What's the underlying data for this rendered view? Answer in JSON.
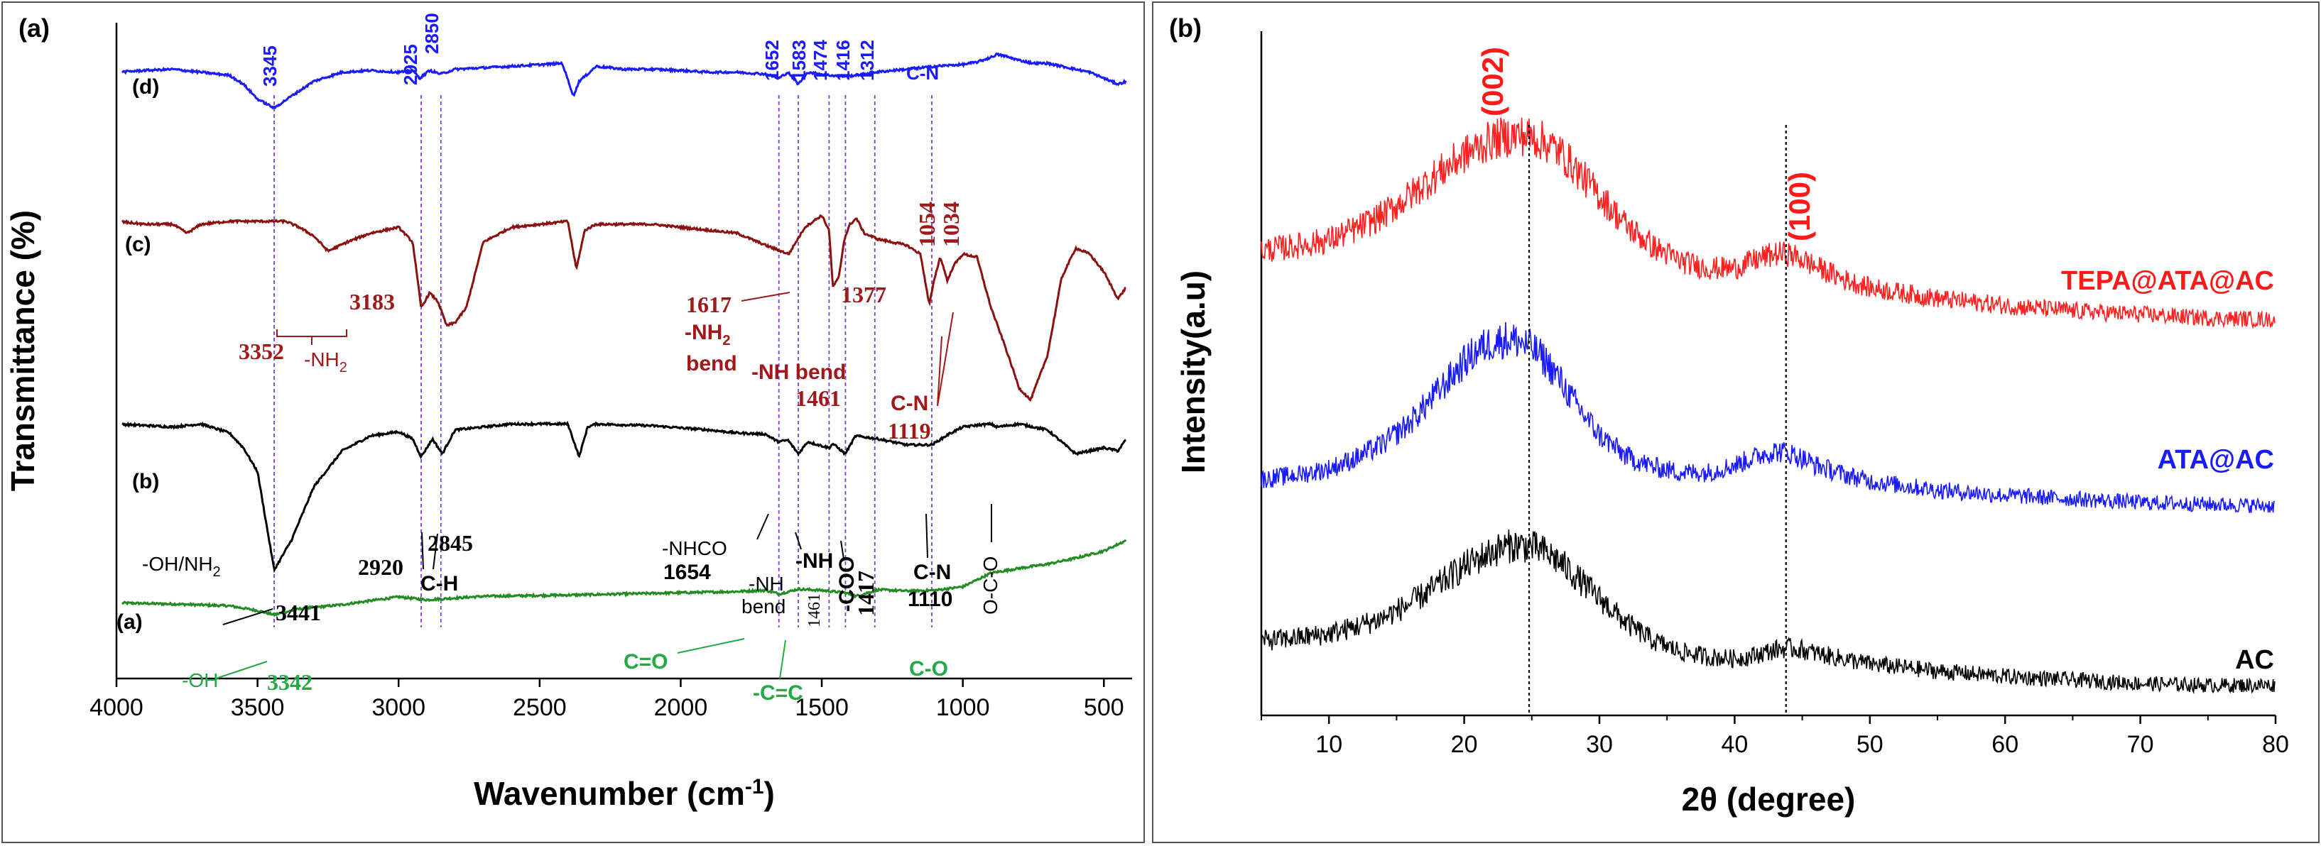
{
  "colors": {
    "blue": "#1a1aff",
    "maroon": "#8b1010",
    "black": "#000000",
    "green": "#228b22",
    "red": "#ff1a1a",
    "guide_purple": "#7b3fd6",
    "xrd_red": "#ff2020",
    "xrd_blue": "#1a1aff",
    "xrd_black": "#000000",
    "green_text": "#22aa44"
  },
  "chart_data": [
    {
      "type": "line",
      "panel_label": "(a)",
      "title": "",
      "xlabel": "Wavenumber (cm",
      "xlabel_sup": "-1",
      "xlabel_end": ")",
      "ylabel": "Transmittance (%)",
      "xlim": [
        4000,
        400
      ],
      "x_ticks": [
        "4000",
        "3500",
        "3000",
        "2500",
        "2000",
        "1500",
        "1000",
        "500"
      ],
      "x_tick_values": [
        4000,
        3500,
        3000,
        2500,
        2000,
        1500,
        1000,
        500
      ],
      "guide_lines": [
        3441,
        2920,
        2850,
        1652,
        1583,
        1474,
        1416,
        1312,
        1110
      ],
      "series": [
        {
          "name": "(a)",
          "color": "#228b22",
          "baseline": 10,
          "x": [
            4000,
            3800,
            3600,
            3500,
            3441,
            3350,
            3200,
            3000,
            2900,
            2700,
            2400,
            2200,
            2000,
            1800,
            1700,
            1650,
            1583,
            1500,
            1417,
            1380,
            1300,
            1200,
            1100,
            1000,
            900,
            800,
            700,
            600,
            500,
            420,
            400
          ],
          "values": [
            11.5,
            11.3,
            11.0,
            10.2,
            9.5,
            10.5,
            11.2,
            12.5,
            12.0,
            12.6,
            12.8,
            13.0,
            13.2,
            13.4,
            13.6,
            13.0,
            13.8,
            13.6,
            13.2,
            12.6,
            13.7,
            13.5,
            13.6,
            14.2,
            16.5,
            17.3,
            18.0,
            19.0,
            20.2,
            22.0,
            25.0
          ]
        },
        {
          "name": "(b)",
          "color": "#000000",
          "baseline": 40,
          "x": [
            4000,
            3800,
            3700,
            3600,
            3550,
            3500,
            3441,
            3380,
            3300,
            3200,
            3100,
            3000,
            2950,
            2920,
            2880,
            2845,
            2800,
            2600,
            2400,
            2360,
            2330,
            2300,
            2100,
            1900,
            1800,
            1700,
            1654,
            1620,
            1583,
            1550,
            1474,
            1461,
            1417,
            1380,
            1300,
            1200,
            1110,
            1050,
            1000,
            950,
            900,
            880,
            800,
            700,
            600,
            500,
            450,
            420,
            400
          ],
          "values": [
            41.5,
            41.0,
            41.5,
            40.0,
            37.5,
            33.5,
            17.0,
            22.0,
            31.0,
            37.0,
            39.5,
            40.2,
            39.0,
            36.0,
            39.0,
            36.5,
            40.5,
            41.5,
            41.5,
            36.0,
            41.0,
            41.5,
            41.2,
            40.5,
            40.0,
            39.8,
            38.5,
            38.8,
            36.5,
            38.5,
            37.5,
            38.2,
            36.5,
            39.5,
            39.0,
            38.0,
            38.0,
            39.8,
            41.0,
            41.3,
            41.5,
            41.0,
            41.5,
            40.5,
            36.5,
            37.5,
            37.0,
            39.0,
            44.5
          ]
        },
        {
          "name": "(c)",
          "color": "#8b1010",
          "baseline": 70,
          "x": [
            4000,
            3900,
            3800,
            3750,
            3700,
            3600,
            3500,
            3400,
            3352,
            3300,
            3250,
            3183,
            3100,
            3000,
            2950,
            2920,
            2890,
            2860,
            2830,
            2800,
            2760,
            2700,
            2600,
            2500,
            2400,
            2370,
            2340,
            2300,
            2200,
            2100,
            2000,
            1900,
            1800,
            1700,
            1617,
            1560,
            1500,
            1474,
            1461,
            1440,
            1420,
            1400,
            1377,
            1350,
            1300,
            1250,
            1200,
            1150,
            1119,
            1100,
            1080,
            1054,
            1034,
            1000,
            950,
            900,
            850,
            800,
            760,
            700,
            650,
            600,
            550,
            500,
            450,
            420,
            400
          ],
          "values": [
            75.5,
            75.0,
            75.0,
            73.5,
            75.0,
            75.5,
            75.5,
            75.5,
            74.5,
            73.0,
            70.5,
            72.0,
            73.5,
            74.5,
            72.0,
            61.0,
            63.5,
            62.0,
            58.0,
            58.5,
            61.0,
            72.0,
            74.5,
            75.0,
            75.5,
            67.5,
            74.0,
            75.0,
            75.0,
            75.0,
            74.5,
            74.0,
            73.5,
            71.5,
            70.0,
            74.5,
            76.5,
            74.0,
            64.5,
            66.0,
            72.5,
            75.0,
            76.0,
            73.5,
            72.5,
            72.0,
            71.5,
            70.0,
            61.5,
            66.0,
            69.5,
            65.5,
            68.0,
            70.0,
            69.5,
            61.0,
            54.5,
            47.5,
            45.5,
            53.0,
            66.0,
            71.0,
            70.0,
            67.0,
            62.5,
            64.5,
            59.5
          ]
        },
        {
          "name": "(d)",
          "color": "#1a1aff",
          "baseline": 100,
          "x": [
            4000,
            3900,
            3800,
            3700,
            3600,
            3550,
            3500,
            3441,
            3380,
            3300,
            3200,
            3100,
            3000,
            2950,
            2925,
            2890,
            2850,
            2800,
            2600,
            2420,
            2380,
            2360,
            2330,
            2300,
            2200,
            2100,
            2000,
            1900,
            1800,
            1700,
            1652,
            1620,
            1583,
            1550,
            1474,
            1416,
            1380,
            1312,
            1250,
            1200,
            1100,
            1000,
            950,
            900,
            880,
            850,
            800,
            750,
            700,
            650,
            600,
            550,
            500,
            450,
            420,
            400
          ],
          "values": [
            100.5,
            100.8,
            101.0,
            100.5,
            100.0,
            98.5,
            96.0,
            94.5,
            96.5,
            99.0,
            100.5,
            100.8,
            100.5,
            100.8,
            99.5,
            100.8,
            100.2,
            101.0,
            101.5,
            102.0,
            96.5,
            99.0,
            100.2,
            101.5,
            101.0,
            101.0,
            100.8,
            100.5,
            100.5,
            100.2,
            99.5,
            100.5,
            98.5,
            100.5,
            100.0,
            99.8,
            100.0,
            100.5,
            100.8,
            101.0,
            101.5,
            101.8,
            102.2,
            103.0,
            103.5,
            103.2,
            102.5,
            102.0,
            102.0,
            101.5,
            101.0,
            100.5,
            99.5,
            98.5,
            99.0,
            102.5
          ]
        }
      ],
      "curve_labels": [
        "(d)",
        "(c)",
        "(b)",
        "(a)"
      ],
      "annotations": {
        "d_3345": "3345",
        "d_2925": "2925",
        "d_2850": "2850",
        "d_1652": "1652",
        "d_1583": "1583",
        "d_1474": "1474",
        "d_1416": "1416",
        "d_1312": "1312",
        "d_cn": "C-N",
        "c_3183": "3183",
        "c_3352": "3352",
        "c_nh2": "-NH",
        "c_nh2_sub": "2",
        "c_1617": "1617",
        "c_nh2_bend": "-NH",
        "c_nh2_bend_sub": "2",
        "c_bend": "bend",
        "c_nh_bend": "-NH bend",
        "c_1377": "1377",
        "c_1461": "1461",
        "c_1054": "1054",
        "c_1034": "1034",
        "c_cn": "C-N",
        "c_1119": "1119",
        "b_2920": "2920",
        "b_2845": "2845",
        "b_ch": "C-H",
        "b_ohnh2": "-OH/NH",
        "b_ohnh2_sub": "2",
        "b_3441": "3441",
        "b_nhco": "-NHCO",
        "b_1654": "1654",
        "b_nh_bend_1": "-NH",
        "b_nh_bend_2": "bend",
        "b_nh": "-NH",
        "b_1461": "1461",
        "b_coo": "-COO",
        "b_1417": "1417",
        "b_cn": "C-N",
        "b_1110": "1110",
        "b_oco": "O-C-O",
        "a_oh": "-OH",
        "a_3342": "3342",
        "a_co_double": "C=O",
        "a_cc_double": "-C=C",
        "a_co": "C-O"
      }
    },
    {
      "type": "line",
      "panel_label": "(b)",
      "title": "",
      "xlabel": "2θ (degree)",
      "ylabel": "Intensity(a.u)",
      "xlim": [
        5,
        80
      ],
      "x_ticks": [
        "10",
        "20",
        "30",
        "40",
        "50",
        "60",
        "70",
        "80"
      ],
      "x_tick_values": [
        10,
        20,
        30,
        40,
        50,
        60,
        70,
        80
      ],
      "reference_lines": [
        24.8,
        43.8
      ],
      "peak_labels": [
        "(002)",
        "(100)"
      ],
      "series": [
        {
          "name": "TEPA@ATA@AC",
          "color": "#ff2020",
          "offset": 2.0,
          "x": [
            5,
            8,
            10,
            12,
            14,
            16,
            18,
            20,
            22,
            23,
            24,
            25,
            26,
            27,
            28,
            30,
            32,
            34,
            36,
            38,
            40,
            41,
            42,
            43,
            44,
            45,
            46,
            48,
            50,
            55,
            60,
            65,
            70,
            75,
            80
          ],
          "values": [
            0.62,
            0.65,
            0.68,
            0.74,
            0.82,
            0.93,
            1.05,
            1.16,
            1.24,
            1.26,
            1.27,
            1.26,
            1.23,
            1.18,
            1.1,
            0.93,
            0.76,
            0.64,
            0.56,
            0.52,
            0.52,
            0.55,
            0.58,
            0.6,
            0.6,
            0.57,
            0.53,
            0.46,
            0.41,
            0.35,
            0.31,
            0.28,
            0.26,
            0.24,
            0.23
          ]
        },
        {
          "name": "ATA@AC",
          "color": "#1a1aff",
          "offset": 1.0,
          "x": [
            5,
            8,
            10,
            12,
            14,
            16,
            18,
            20,
            21,
            22,
            23,
            24,
            25,
            26,
            27,
            28,
            30,
            32,
            34,
            36,
            38,
            40,
            41,
            42,
            43,
            44,
            45,
            46,
            48,
            50,
            55,
            60,
            65,
            70,
            75,
            80
          ],
          "values": [
            0.33,
            0.36,
            0.39,
            0.45,
            0.53,
            0.65,
            0.82,
            0.99,
            1.06,
            1.1,
            1.12,
            1.11,
            1.07,
            1.0,
            0.9,
            0.78,
            0.58,
            0.46,
            0.4,
            0.37,
            0.37,
            0.41,
            0.44,
            0.47,
            0.49,
            0.48,
            0.45,
            0.41,
            0.36,
            0.32,
            0.27,
            0.24,
            0.22,
            0.2,
            0.19,
            0.18
          ]
        },
        {
          "name": "AC",
          "color": "#000000",
          "offset": 0.0,
          "x": [
            5,
            8,
            10,
            12,
            14,
            16,
            18,
            20,
            22,
            23,
            24,
            25,
            26,
            27,
            28,
            30,
            32,
            34,
            36,
            38,
            40,
            41,
            42,
            43,
            44,
            45,
            46,
            48,
            50,
            55,
            60,
            65,
            70,
            75,
            80
          ],
          "values": [
            0.42,
            0.44,
            0.46,
            0.5,
            0.55,
            0.63,
            0.73,
            0.84,
            0.92,
            0.95,
            0.96,
            0.95,
            0.92,
            0.87,
            0.8,
            0.66,
            0.52,
            0.42,
            0.36,
            0.33,
            0.32,
            0.33,
            0.35,
            0.37,
            0.38,
            0.37,
            0.35,
            0.32,
            0.29,
            0.25,
            0.22,
            0.2,
            0.18,
            0.17,
            0.17
          ]
        }
      ],
      "series_labels": [
        "TEPA@ATA@AC",
        "ATA@AC",
        "AC"
      ]
    }
  ]
}
